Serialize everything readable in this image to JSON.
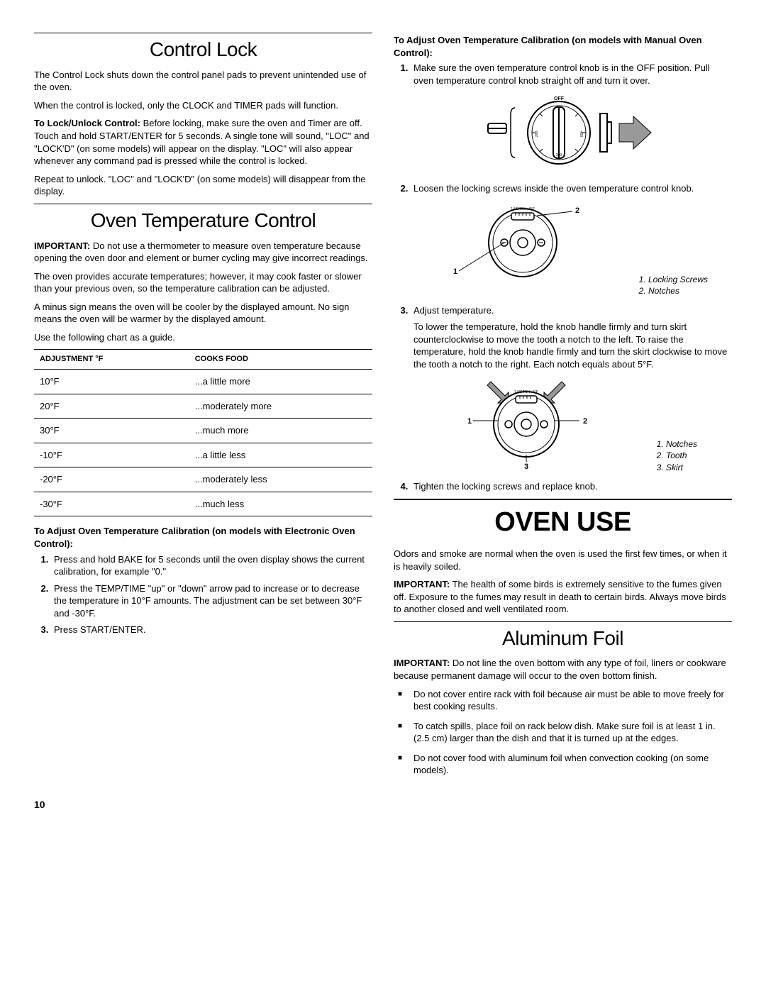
{
  "col1": {
    "control_lock": {
      "title": "Control Lock",
      "p1": "The Control Lock shuts down the control panel pads to prevent unintended use of the oven.",
      "p2": "When the control is locked, only the CLOCK and TIMER pads will function.",
      "p3_bold": "To Lock/Unlock Control:",
      "p3": " Before locking, make sure the oven and Timer are off. Touch and hold START/ENTER for 5 seconds. A single tone will sound, \"LOC\" and \"LOCK'D\" (on some models) will appear on the display. \"LOC\" will also appear whenever any command pad is pressed while the control is locked.",
      "p4": "Repeat to unlock. \"LOC\" and \"LOCK'D\" (on some models) will disappear from the display."
    },
    "oven_temp": {
      "title": "Oven Temperature Control",
      "p1_bold": "IMPORTANT:",
      "p1": " Do not use a thermometer to measure oven temperature because opening the oven door and element or burner cycling may give incorrect readings.",
      "p2": "The oven provides accurate temperatures; however, it may cook faster or slower than your previous oven, so the temperature calibration can be adjusted.",
      "p3": "A minus sign means the oven will be cooler by the displayed amount. No sign means the oven will be warmer by the displayed amount.",
      "p4": "Use the following chart as a guide.",
      "table": {
        "h1": "Adjustment °F",
        "h2": "Cooks Food",
        "rows": [
          [
            "10°F",
            "...a little more"
          ],
          [
            "20°F",
            "...moderately more"
          ],
          [
            "30°F",
            "...much more"
          ],
          [
            "-10°F",
            "...a little less"
          ],
          [
            "-20°F",
            "...moderately less"
          ],
          [
            "-30°F",
            "...much less"
          ]
        ]
      },
      "sub1": "To Adjust Oven Temperature Calibration (on models with Electronic Oven Control):",
      "steps_e": [
        "Press and hold BAKE for 5 seconds until the oven display shows the current calibration, for example \"0.\"",
        "Press the TEMP/TIME \"up\" or \"down\" arrow pad to increase or to decrease the temperature in 10°F amounts. The adjustment can be set between 30°F and -30°F.",
        "Press START/ENTER."
      ]
    }
  },
  "col2": {
    "manual": {
      "sub": "To Adjust Oven Temperature Calibration (on models with Manual Oven Control):",
      "step1": "Make sure the oven temperature control knob is in the OFF position. Pull oven temperature control knob straight off and turn it over.",
      "step2": "Loosen the locking screws inside the oven temperature control knob.",
      "cap2_1": "1. Locking Screws",
      "cap2_2": "2. Notches",
      "step3a": "Adjust temperature.",
      "step3b": "To lower the temperature, hold the knob handle firmly and turn skirt counterclockwise to move the tooth a notch to the left. To raise the temperature, hold the knob handle firmly and turn the skirt clockwise to move the tooth a notch to the right. Each notch equals about 5°F.",
      "cap3_1": "1. Notches",
      "cap3_2": "2. Tooth",
      "cap3_3": "3. Skirt",
      "step4": "Tighten the locking screws and replace knob."
    },
    "oven_use": {
      "title": "Oven Use",
      "p1": "Odors and smoke are normal when the oven is used the first few times, or when it is heavily soiled.",
      "p2_bold": "IMPORTANT:",
      "p2": " The health of some birds is extremely sensitive to the fumes given off. Exposure to the fumes may result in death to certain birds. Always move birds to another closed and well ventilated room."
    },
    "foil": {
      "title": "Aluminum Foil",
      "p1_bold": "IMPORTANT:",
      "p1": " Do not line the oven bottom with any type of foil, liners or cookware because permanent damage will occur to the oven bottom finish.",
      "bullets": [
        "Do not cover entire rack with foil because air must be able to move freely for best cooking results.",
        "To catch spills, place foil on rack below dish. Make sure foil is at least 1 in. (2.5 cm) larger than the dish and that it is turned up at the edges.",
        "Do not cover food with aluminum foil when convection cooking (on some models)."
      ]
    }
  },
  "page": "10"
}
